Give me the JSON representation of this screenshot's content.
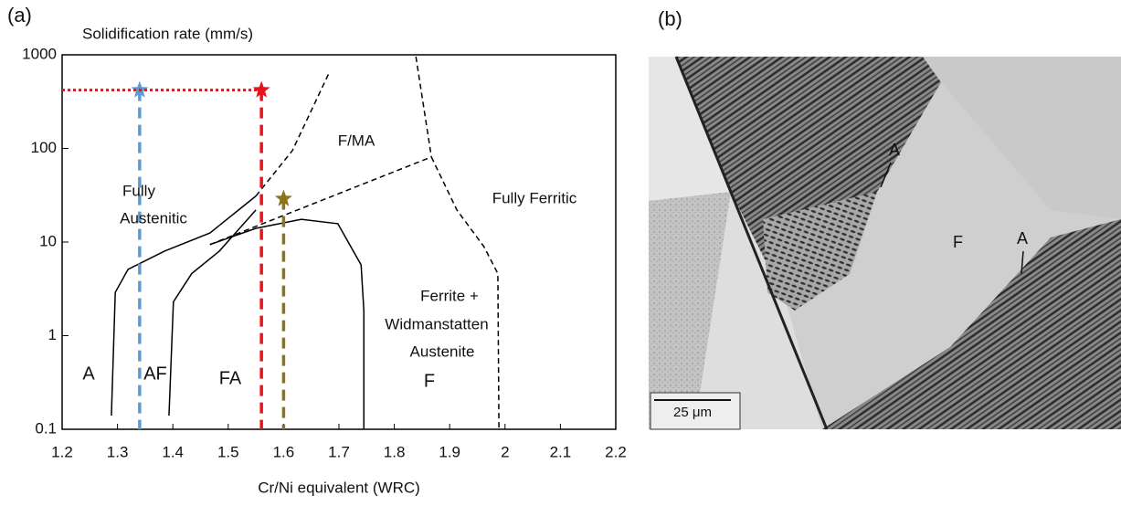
{
  "panel_labels": [
    "(a)",
    "(b)"
  ],
  "chart_data": {
    "type": "line",
    "title": "Solidification rate (mm/s)",
    "x_label": "Cr/Ni equivalent (WRC)",
    "xlim": [
      1.2,
      2.2
    ],
    "xticks": [
      1.2,
      1.3,
      1.4,
      1.5,
      1.6,
      1.7,
      1.8,
      1.9,
      2,
      2.1,
      2.2
    ],
    "ylim": [
      0.1,
      1000
    ],
    "yticks": [
      0.1,
      1,
      10,
      100,
      1000
    ],
    "log_y": true,
    "series": [
      {
        "color": "#000000",
        "dashed": false,
        "x": [
          1.289,
          1.296,
          1.319,
          1.385,
          1.467,
          1.55
        ],
        "values": [
          0.14,
          2.9,
          5.1,
          8,
          12.5,
          31
        ]
      },
      {
        "color": "#000000",
        "dashed": true,
        "x": [
          1.55,
          1.616,
          1.682
        ],
        "values": [
          31,
          95,
          638
        ]
      },
      {
        "color": "#000000",
        "dashed": false,
        "x": [
          1.393,
          1.401,
          1.434,
          1.484,
          1.55
        ],
        "values": [
          0.14,
          2.3,
          4.6,
          8,
          22
        ]
      },
      {
        "color": "#000000",
        "dashed": false,
        "x": [
          1.467,
          1.55,
          1.632,
          1.698,
          1.74,
          1.745,
          1.745
        ],
        "values": [
          9.4,
          14,
          17.5,
          15.7,
          5.7,
          1.85,
          0.1
        ]
      },
      {
        "color": "#000000",
        "dashed": true,
        "x": [
          1.467,
          1.867
        ],
        "values": [
          9.4,
          81
        ]
      },
      {
        "color": "#000000",
        "dashed": true,
        "x": [
          1.839,
          1.867
        ],
        "values": [
          956,
          81
        ]
      },
      {
        "color": "#000000",
        "dashed": true,
        "x": [
          1.867,
          1.913,
          1.962,
          1.987,
          1.989
        ],
        "values": [
          81,
          22,
          8.9,
          4.6,
          0.1
        ]
      }
    ],
    "markers": [
      {
        "color": "#5b9bd5",
        "x": 1.34,
        "y": 420
      },
      {
        "color": "#e8141c",
        "x": 1.56,
        "y": 420
      },
      {
        "color": "#8c7320",
        "x": 1.6,
        "y": 29
      }
    ],
    "annotations": [
      "F/MA",
      "Fully",
      "Austenitic",
      "Fully Ferritic",
      "Ferrite +",
      "Widmanstatten",
      "Austenite",
      "A",
      "AF",
      "FA",
      "F"
    ]
  },
  "micrograph": {
    "labels": [
      "A",
      "F",
      "A"
    ],
    "scale_bar": "25 μm"
  }
}
